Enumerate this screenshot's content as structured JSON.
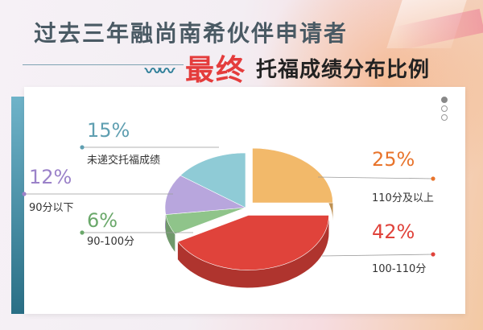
{
  "header": {
    "title_line1": "过去三年融尚南希伙伴申请者",
    "title_accent": "最终",
    "title_rest": "托福成绩分布比例"
  },
  "chart_data": {
    "type": "pie",
    "slices": [
      {
        "label": "110分及以上",
        "value": 25,
        "pct": "25%",
        "color": "#f2b96a"
      },
      {
        "label": "100-110分",
        "value": 42,
        "pct": "42%",
        "color": "#e0433b"
      },
      {
        "label": "90-100分",
        "value": 6,
        "pct": "6%",
        "color": "#8fc48a"
      },
      {
        "label": "90分以下",
        "value": 12,
        "pct": "12%",
        "color": "#b8a6dd"
      },
      {
        "label": "未递交托福成绩",
        "value": 15,
        "pct": "15%",
        "color": "#8fcbd6"
      }
    ],
    "label_colors": {
      "110分及以上": "#e8742c",
      "100-110分": "#e0433b",
      "90-100分": "#6aa86a",
      "90分以下": "#9b82c9",
      "未递交托福成绩": "#5f9fb1"
    }
  }
}
